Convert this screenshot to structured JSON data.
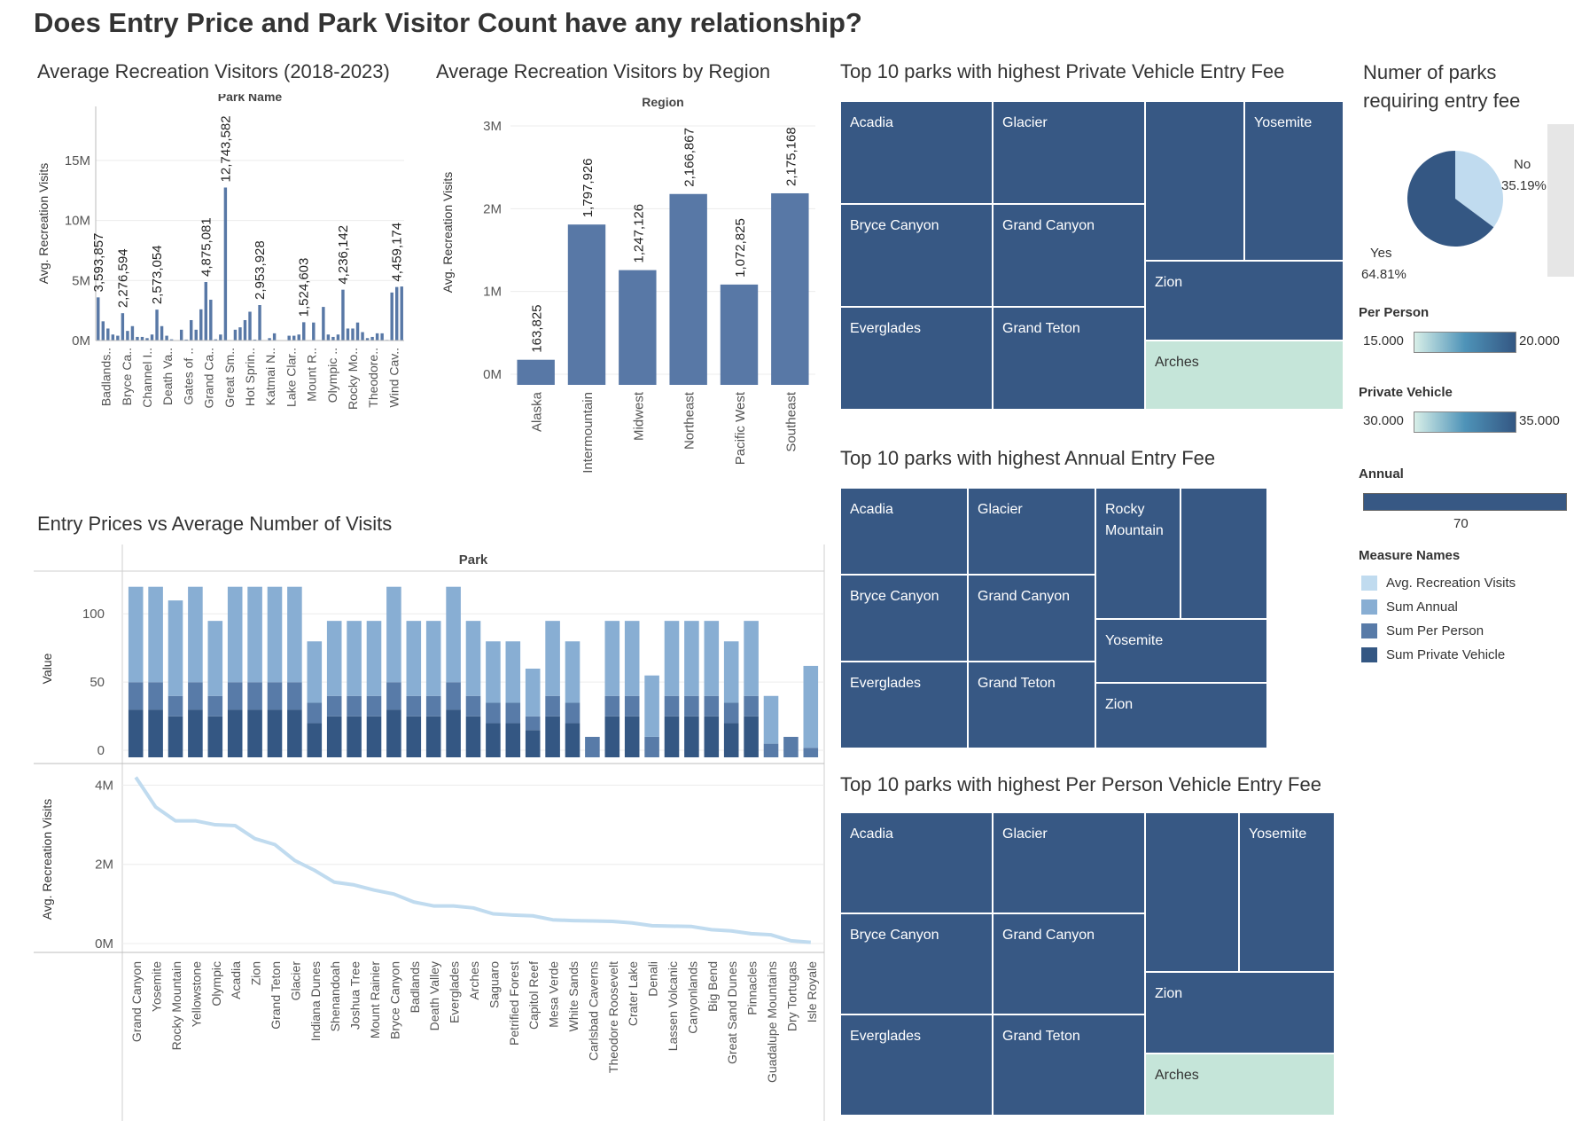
{
  "title": "Does Entry Price and Park Visitor Count have any relationship?",
  "chart_data": [
    {
      "id": "park-avg",
      "type": "bar",
      "title": "Average Recreation Visitors (2018-2023)",
      "header": "Park Name",
      "ylabel": "Avg. Recreation Visits",
      "ylim": [
        0,
        19500000
      ],
      "yticks": [
        0,
        5000000,
        10000000,
        15000000
      ],
      "ytick_labels": [
        "0M",
        "5M",
        "10M",
        "15M"
      ],
      "tick_labels": [
        "Badlands..",
        "Bryce Ca..",
        "Channel I..",
        "Death Va..",
        "Gates of ..",
        "Grand Ca..",
        "Great Sm..",
        "Hot Sprin..",
        "Katmai N..",
        "Lake Clar..",
        "Mount R..",
        "Olympic ..",
        "Rocky Mo..",
        "Theodore..",
        "Wind Cav.."
      ],
      "values": [
        3593857,
        1600000,
        1000000,
        500000,
        400000,
        2276594,
        800000,
        1200000,
        300000,
        300000,
        200000,
        500000,
        2573054,
        1200000,
        400000,
        100000,
        10000,
        900000,
        80000,
        1700000,
        900000,
        2600000,
        4875081,
        3400000,
        100000,
        500000,
        12743582,
        40000,
        900000,
        1100000,
        1700000,
        2400000,
        80000,
        2953928,
        30000,
        200000,
        600000,
        20000,
        5000,
        400000,
        400000,
        500000,
        1524603,
        20000,
        1500000,
        40000,
        2800000,
        500000,
        300000,
        500000,
        4236142,
        1000000,
        1000000,
        1500000,
        700000,
        200000,
        300000,
        600000,
        600000,
        50000,
        4000000,
        4459174,
        4500000
      ],
      "labeled": [
        {
          "index": 0,
          "text": "3,593,857"
        },
        {
          "index": 5,
          "text": "2,276,594"
        },
        {
          "index": 12,
          "text": "2,573,054"
        },
        {
          "index": 22,
          "text": "4,875,081"
        },
        {
          "index": 26,
          "text": "12,743,582"
        },
        {
          "index": 33,
          "text": "2,953,928"
        },
        {
          "index": 42,
          "text": "1,524,603"
        },
        {
          "index": 50,
          "text": "4,236,142"
        },
        {
          "index": 61,
          "text": "4,459,174"
        }
      ]
    },
    {
      "id": "region-avg",
      "type": "bar",
      "title": "Average Recreation Visitors by Region",
      "header": "Region",
      "ylabel": "Avg. Recreation Visits",
      "ylim": [
        0,
        3000000
      ],
      "yticks": [
        0,
        1000000,
        2000000,
        3000000
      ],
      "ytick_labels": [
        "0M",
        "1M",
        "2M",
        "3M"
      ],
      "categories": [
        "Alaska",
        "Intermountain",
        "Midwest",
        "Northeast",
        "Pacific West",
        "Southeast"
      ],
      "values": [
        163825,
        1797926,
        1247126,
        2166867,
        1072825,
        2175168
      ],
      "value_labels": [
        "163,825",
        "1,797,926",
        "1,247,126",
        "2,166,867",
        "1,072,825",
        "2,175,168"
      ]
    },
    {
      "id": "prices-visits",
      "type": "bar",
      "title": "Entry Prices vs Average Number of Visits",
      "header": "Park",
      "top_ylabel": "Value",
      "top_ylim": [
        0,
        130
      ],
      "top_yticks": [
        0,
        50,
        100
      ],
      "bottom_ylabel": "Avg. Recreation Visits",
      "bottom_ylim": [
        0,
        4300000
      ],
      "bottom_yticks": [
        0,
        2000000,
        4000000
      ],
      "bottom_ytick_labels": [
        "0M",
        "2M",
        "4M"
      ],
      "categories": [
        "Grand Canyon",
        "Yosemite",
        "Rocky Mountain",
        "Yellowstone",
        "Olympic",
        "Acadia",
        "Zion",
        "Grand Teton",
        "Glacier",
        "Indiana Dunes",
        "Shenandoah",
        "Joshua Tree",
        "Mount Rainier",
        "Bryce Canyon",
        "Badlands",
        "Death Valley",
        "Everglades",
        "Arches",
        "Saguaro",
        "Petrified Forest",
        "Capitol Reef",
        "Mesa Verde",
        "White Sands",
        "Carlsbad Caverns",
        "Theodore Roosevelt",
        "Crater Lake",
        "Denali",
        "Lassen Volcanic",
        "Canyonlands",
        "Big Bend",
        "Great Sand Dunes",
        "Pinnacles",
        "Guadalupe Mountains",
        "Dry Tortugas",
        "Isle Royale"
      ],
      "series": [
        {
          "name": "Sum Private Vehicle",
          "values": [
            35,
            35,
            30,
            35,
            30,
            35,
            35,
            35,
            35,
            25,
            30,
            30,
            30,
            35,
            30,
            30,
            35,
            30,
            25,
            25,
            20,
            30,
            25,
            0,
            30,
            30,
            0,
            30,
            30,
            30,
            25,
            30,
            0,
            0,
            0
          ]
        },
        {
          "name": "Sum Per Person",
          "values": [
            20,
            20,
            15,
            20,
            15,
            20,
            20,
            20,
            20,
            15,
            15,
            15,
            15,
            20,
            15,
            15,
            20,
            15,
            15,
            15,
            10,
            15,
            15,
            15,
            15,
            15,
            15,
            15,
            15,
            15,
            15,
            15,
            10,
            15,
            7
          ]
        },
        {
          "name": "Sum Annual",
          "values": [
            70,
            70,
            70,
            70,
            55,
            70,
            70,
            70,
            70,
            45,
            55,
            55,
            55,
            70,
            55,
            55,
            70,
            55,
            45,
            45,
            35,
            55,
            45,
            0,
            55,
            55,
            45,
            55,
            55,
            55,
            45,
            55,
            35,
            0,
            60
          ]
        }
      ],
      "visits": [
        4200000,
        3450000,
        3100000,
        3100000,
        3000000,
        2980000,
        2650000,
        2500000,
        2100000,
        1850000,
        1550000,
        1480000,
        1350000,
        1250000,
        1050000,
        950000,
        950000,
        900000,
        750000,
        720000,
        700000,
        600000,
        580000,
        570000,
        560000,
        520000,
        450000,
        440000,
        430000,
        350000,
        320000,
        250000,
        220000,
        70000,
        30000
      ]
    },
    {
      "id": "tm-private",
      "type": "treemap",
      "title": "Top 10 parks with highest Private Vehicle Entry Fee",
      "cells": [
        {
          "label": "Acadia",
          "value": 35
        },
        {
          "label": "Glacier",
          "value": 35
        },
        {
          "label": "",
          "value": 35
        },
        {
          "label": "Yosemite",
          "value": 35
        },
        {
          "label": "Bryce Canyon",
          "value": 35
        },
        {
          "label": "Grand Canyon",
          "value": 35
        },
        {
          "label": "Zion",
          "value": 35
        },
        {
          "label": "Everglades",
          "value": 35
        },
        {
          "label": "Grand Teton",
          "value": 35
        },
        {
          "label": "Arches",
          "value": 30
        }
      ]
    },
    {
      "id": "tm-annual",
      "type": "treemap",
      "title": "Top 10 parks with highest Annual Entry Fee",
      "cells": [
        {
          "label": "Acadia",
          "value": 70
        },
        {
          "label": "Glacier",
          "value": 70
        },
        {
          "label": "Rocky Mountain",
          "value": 70
        },
        {
          "label": "",
          "value": 70
        },
        {
          "label": "Bryce Canyon",
          "value": 70
        },
        {
          "label": "Grand Canyon",
          "value": 70
        },
        {
          "label": "Yosemite",
          "value": 70
        },
        {
          "label": "Everglades",
          "value": 70
        },
        {
          "label": "Grand Teton",
          "value": 70
        },
        {
          "label": "Zion",
          "value": 70
        }
      ]
    },
    {
      "id": "tm-person",
      "type": "treemap",
      "title": "Top 10 parks with highest Per Person Vehicle Entry Fee",
      "cells": [
        {
          "label": "Acadia",
          "value": 20
        },
        {
          "label": "Glacier",
          "value": 20
        },
        {
          "label": "",
          "value": 20
        },
        {
          "label": "Yosemite",
          "value": 20
        },
        {
          "label": "Bryce Canyon",
          "value": 20
        },
        {
          "label": "Grand Canyon",
          "value": 20
        },
        {
          "label": "Zion",
          "value": 20
        },
        {
          "label": "Everglades",
          "value": 20
        },
        {
          "label": "Grand Teton",
          "value": 20
        },
        {
          "label": "Arches",
          "value": 15
        }
      ]
    },
    {
      "id": "fee-pie",
      "type": "pie",
      "title": "Numer of parks requiring entry fee",
      "slices": [
        {
          "label": "No",
          "value": 35.19,
          "text": "35.19%",
          "color": "#c0dbef"
        },
        {
          "label": "Yes",
          "value": 64.81,
          "text": "64.81%",
          "color": "#345783"
        }
      ]
    }
  ],
  "legends": {
    "per_person": {
      "title": "Per Person",
      "min": "15.000",
      "max": "20.000"
    },
    "private_vehicle": {
      "title": "Private Vehicle",
      "min": "30.000",
      "max": "35.000"
    },
    "annual": {
      "title": "Annual",
      "value": "70"
    },
    "measure_names": {
      "title": "Measure Names",
      "items": [
        {
          "label": "Avg. Recreation Visits",
          "color": "#c0dbef"
        },
        {
          "label": "Sum Annual",
          "color": "#88aed3"
        },
        {
          "label": "Sum Per Person",
          "color": "#587ba8"
        },
        {
          "label": "Sum Private Vehicle",
          "color": "#345783"
        }
      ]
    }
  },
  "colors": {
    "bar": "#5878a6",
    "dark": "#375884",
    "light": "#c5e5d9",
    "grid": "#ececec",
    "axis": "#bbbbbb",
    "text": "#555555"
  }
}
